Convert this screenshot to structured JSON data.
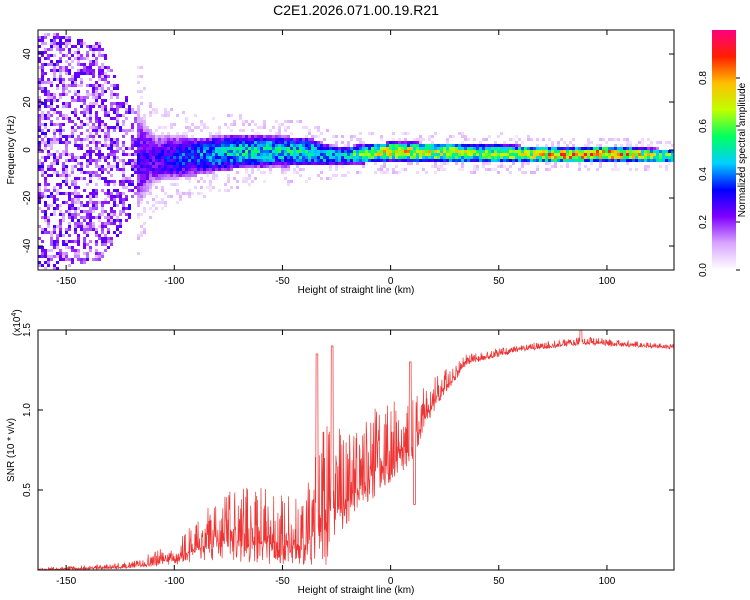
{
  "title": "C2E1.2026.071.00.19.R21",
  "chart_data": [
    {
      "type": "heatmap",
      "xlabel": "Height of straight line (km)",
      "ylabel": "Frequency (Hz)",
      "xlim": [
        -163,
        131
      ],
      "ylim": [
        -50,
        50
      ],
      "xticks": [
        -150,
        -100,
        -50,
        0,
        50,
        100
      ],
      "yticks": [
        -40,
        -20,
        0,
        20,
        40
      ],
      "colorbar": {
        "label": "Normalized spectral amplitude",
        "range": [
          0,
          1
        ],
        "ticks": [
          "0.0",
          "0.2",
          "0.4",
          "0.6",
          "0.8"
        ],
        "colors": [
          "#ffffff",
          "#d9a6ff",
          "#8000ff",
          "#0000ff",
          "#00d0ff",
          "#00ff60",
          "#c0ff00",
          "#ffc000",
          "#ff2000",
          "#ff0080"
        ]
      },
      "band": [
        {
          "x": -160,
          "center": 0,
          "halfwidth": 50,
          "peak": 0.25
        },
        {
          "x": -135,
          "center": 0,
          "halfwidth": 45,
          "peak": 0.22
        },
        {
          "x": -125,
          "center": -4,
          "halfwidth": 30,
          "peak": 0.25
        },
        {
          "x": -110,
          "center": -3,
          "halfwidth": 10,
          "peak": 0.28
        },
        {
          "x": -90,
          "center": -2,
          "halfwidth": 8,
          "peak": 0.4
        },
        {
          "x": -70,
          "center": 0,
          "halfwidth": 7,
          "peak": 0.5
        },
        {
          "x": -40,
          "center": 0,
          "halfwidth": 6,
          "peak": 0.5
        },
        {
          "x": -25,
          "center": -2,
          "halfwidth": 4,
          "peak": 0.45
        },
        {
          "x": 0,
          "center": 0,
          "halfwidth": 4,
          "peak": 0.75
        },
        {
          "x": 50,
          "center": -1,
          "halfwidth": 4,
          "peak": 0.6
        },
        {
          "x": 80,
          "center": -1.5,
          "halfwidth": 3,
          "peak": 0.8
        },
        {
          "x": 100,
          "center": -1,
          "halfwidth": 3,
          "peak": 0.85
        },
        {
          "x": 131,
          "center": -2,
          "halfwidth": 3,
          "peak": 0.55
        }
      ]
    },
    {
      "type": "line",
      "xlabel": "Height of straight line (km)",
      "ylabel": "SNR (10 * v/v)",
      "scale_label": "(x10",
      "scale_exponent": "4",
      "scale_close": ")",
      "xlim": [
        -163,
        131
      ],
      "ylim": [
        0,
        1.5
      ],
      "xticks": [
        -150,
        -100,
        -50,
        0,
        50,
        100
      ],
      "yticks": [
        "0.5",
        "1.0",
        "1.5"
      ],
      "color": "#ee3333",
      "envelope": [
        {
          "x": -163,
          "base": 0.0,
          "amp": 0.01
        },
        {
          "x": -120,
          "base": 0.02,
          "amp": 0.03
        },
        {
          "x": -100,
          "base": 0.07,
          "amp": 0.1
        },
        {
          "x": -80,
          "base": 0.18,
          "amp": 0.3
        },
        {
          "x": -60,
          "base": 0.18,
          "amp": 0.35
        },
        {
          "x": -40,
          "base": 0.15,
          "amp": 0.3
        },
        {
          "x": -30,
          "base": 0.3,
          "amp": 0.7
        },
        {
          "x": -20,
          "base": 0.45,
          "amp": 0.4
        },
        {
          "x": 0,
          "base": 0.7,
          "amp": 0.4
        },
        {
          "x": 10,
          "base": 0.8,
          "amp": 0.3
        },
        {
          "x": 20,
          "base": 1.05,
          "amp": 0.15
        },
        {
          "x": 35,
          "base": 1.3,
          "amp": 0.05
        },
        {
          "x": 60,
          "base": 1.38,
          "amp": 0.03
        },
        {
          "x": 90,
          "base": 1.42,
          "amp": 0.04
        },
        {
          "x": 131,
          "base": 1.39,
          "amp": 0.02
        }
      ],
      "peaks": [
        {
          "x": -27,
          "y": 1.4
        },
        {
          "x": -34,
          "y": 1.35
        },
        {
          "x": 9,
          "y": 1.3
        },
        {
          "x": 88,
          "y": 1.5
        },
        {
          "x": 11,
          "y": 0.41
        }
      ]
    }
  ]
}
